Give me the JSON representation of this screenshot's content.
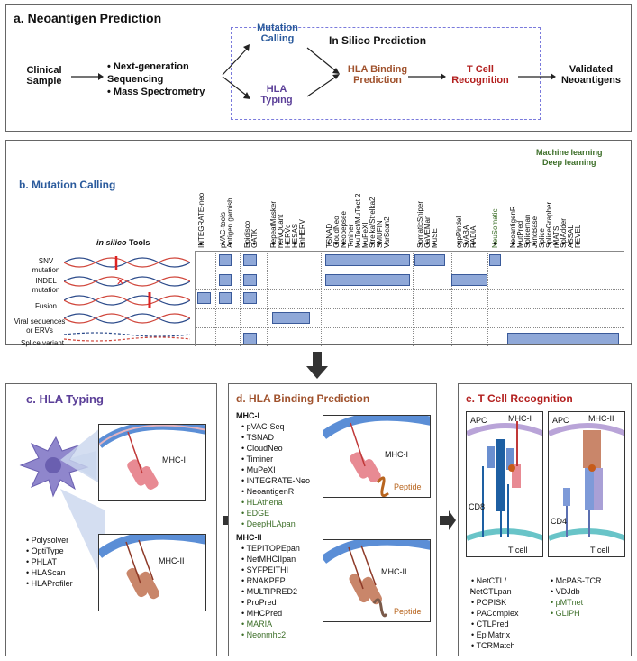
{
  "panel_a": {
    "title": "a. Neoantigen Prediction",
    "clinical": "Clinical\nSample",
    "methods": [
      "Next-generation Sequencing",
      "Mass Spectrometry"
    ],
    "in_silico_title": "In Silico Prediction",
    "mutation_calling": "Mutation\nCalling",
    "hla_typing": "HLA\nTyping",
    "hla_binding": "HLA Binding\nPrediction",
    "t_cell": "T Cell\nRecognition",
    "validated": "Validated\nNeoantigens"
  },
  "panel_b": {
    "title": "b. Mutation Calling",
    "ml_label": "Machine learning\nDeep learning",
    "tools_label_italic": "in silico",
    "tools_label": " Tools",
    "tools": [
      "INTEGRATE-neo",
      "pVAC-tools",
      "Antigen.garnish",
      "Epidisco",
      "GATK",
      "RepeatMasker",
      "hervQuant",
      "HERVd",
      "HESAS",
      "EnHERV",
      "TSNAD",
      "CloudNeo",
      "Neopepsee",
      "Timiner",
      "MuTect/MuTect 2",
      "MuPeXI",
      "Strelka/Strelka2",
      "SMUFIN",
      "VarScan2",
      "SomaticSniper",
      "CaVEMan",
      "MuSE",
      "cgpPindel",
      "SvABA",
      "RADIA",
      "NeuSomatic",
      "NeoantigenR",
      "MutPred",
      "Spliceman",
      "JuncBase",
      "Splice",
      "SpliceGrapher",
      "rMATS",
      "SplAdder",
      "ASSAL",
      "REVEL"
    ],
    "rows": [
      "SNV\nmutation",
      "INDEL\nmutation",
      "Fusion",
      "Viral sequences\nor ERVs",
      "Splice variant"
    ]
  },
  "panel_c": {
    "title": "c. HLA Typing",
    "mhc1": "MHC-I",
    "mhc2": "MHC-II",
    "tools": [
      "Polysolver",
      "OptiType",
      "PHLAT",
      "HLAScan",
      "HLAProfiler"
    ]
  },
  "panel_d": {
    "title": "d. HLA Binding Prediction",
    "mhc1_header": "MHC-I",
    "mhc1_tools": [
      "pVAC-Seq",
      "TSNAD",
      "CloudNeo",
      "Timiner",
      "MuPeXI",
      "INTEGRATE-Neo",
      "NeoantigenR"
    ],
    "mhc1_ml": [
      "HLAthena",
      "EDGE",
      "DeepHLApan"
    ],
    "mhc2_header": "MHC-II",
    "mhc2_tools": [
      "TEPITOPEpan",
      "NetMHCIIpan",
      "SYFPEITHI",
      "RNAKPEP",
      "MULTIPRED2",
      "ProPred",
      "MHCPred"
    ],
    "mhc2_ml": [
      "MARIA",
      "Neonmhc2"
    ],
    "mhc1": "MHC-I",
    "mhc2": "MHC-II",
    "peptide": "Peptide"
  },
  "panel_e": {
    "title": "e. T Cell Recognition",
    "apc": "APC",
    "mhc1": "MHC-I",
    "mhc2": "MHC-II",
    "cd8": "CD8",
    "cd4": "CD4",
    "tcell": "T cell",
    "col1": [
      "NetCTL/",
      "NetCTLpan",
      "POPISK",
      "PAComplex",
      "CTLPred",
      "EpiMatrix",
      "TCRMatch"
    ],
    "col2": [
      "McPAS-TCR",
      "VDJdb"
    ],
    "col2_ml": [
      "pMTnet",
      "GLIPH"
    ]
  },
  "colors": {
    "blue": "#2a5a9c",
    "purple": "#5b3f98",
    "brown": "#a0522d",
    "red": "#b3201f",
    "green": "#3c6e28",
    "bar": "#8fa8d8"
  }
}
